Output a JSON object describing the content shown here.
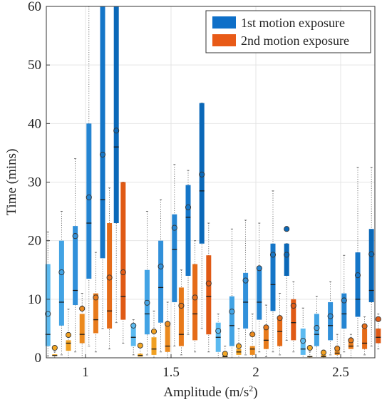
{
  "chart_data": {
    "type": "boxplot",
    "xlabel": "Amplitude (m/s",
    "xlabel_sup": "2",
    "xlabel_suffix": ")",
    "ylabel": "Time (mins)",
    "ylim": [
      0,
      60
    ],
    "yticks": [
      0,
      10,
      20,
      30,
      40,
      50,
      60
    ],
    "grid": true,
    "legend_position": "top-right",
    "categories": [
      "1",
      "1.5",
      "2",
      "2.5"
    ],
    "exposure_colors": [
      "#1565c0",
      "#e65c14"
    ],
    "series": [
      {
        "name": "1st motion exposure",
        "color": "#0e6fc8"
      },
      {
        "name": "2nd motion exposure",
        "color": "#e85a17"
      }
    ],
    "groups": [
      {
        "category": "1",
        "boxes": [
          {
            "exposure": 1,
            "color": "#5bbaf0",
            "min": 0.3,
            "q1": 2,
            "median": 4,
            "q3": 16,
            "max": 21.5,
            "mean": 7.5
          },
          {
            "exposure": 2,
            "color": "#f2a623",
            "min": 0,
            "q1": 0.3,
            "median": 0.4,
            "q3": 0.6,
            "max": 1,
            "mean": 1.7
          },
          {
            "exposure": 1,
            "color": "#42a3e4",
            "min": 0.5,
            "q1": 5.5,
            "median": 9.5,
            "q3": 20,
            "max": 25,
            "mean": 14.6
          },
          {
            "exposure": 2,
            "color": "#f0a021",
            "min": 0,
            "q1": 1.2,
            "median": 2.5,
            "q3": 3,
            "max": 8.3,
            "mean": 3.9
          },
          {
            "exposure": 1,
            "color": "#3190da",
            "min": 1,
            "q1": 9,
            "median": 11.5,
            "q3": 22.5,
            "max": 34,
            "mean": 20.8
          },
          {
            "exposure": 2,
            "color": "#eb8a1e",
            "min": 0,
            "q1": 2.5,
            "median": 4,
            "q3": 7.5,
            "max": 11,
            "mean": 8.4
          },
          {
            "exposure": 1,
            "color": "#2585d2",
            "min": 2,
            "q1": 13.5,
            "median": 23,
            "q3": 40,
            "max": 60,
            "mean": 27.4
          },
          {
            "exposure": 2,
            "color": "#e87a1b",
            "min": 1,
            "q1": 4.2,
            "median": 6.5,
            "q3": 11,
            "max": 18,
            "mean": 10.3
          },
          {
            "exposure": 1,
            "color": "#1576c8",
            "min": 5,
            "q1": 17,
            "median": 27,
            "q3": 60,
            "max": 60,
            "mean": 34.7
          },
          {
            "exposure": 2,
            "color": "#e56b18",
            "min": 1.5,
            "q1": 5,
            "median": 8,
            "q3": 23,
            "max": 29,
            "mean": 13.7
          },
          {
            "exposure": 1,
            "color": "#0a68b8",
            "min": 6,
            "q1": 23,
            "median": 36,
            "q3": 60,
            "max": 60,
            "mean": 38.8
          },
          {
            "exposure": 2,
            "color": "#e05a15",
            "min": 2.5,
            "q1": 6.5,
            "median": 10.5,
            "q3": 30,
            "max": 30,
            "mean": 14.6
          }
        ]
      },
      {
        "category": "1.5",
        "boxes": [
          {
            "exposure": 1,
            "color": "#5bbaf0",
            "min": 0.5,
            "q1": 2,
            "median": 3.5,
            "q3": 5.5,
            "max": 6.5,
            "mean": 5.5
          },
          {
            "exposure": 2,
            "color": "#f2a623",
            "min": 0,
            "q1": 0.2,
            "median": 0.4,
            "q3": 0.7,
            "max": 2,
            "mean": 2.1
          },
          {
            "exposure": 1,
            "color": "#42a3e4",
            "min": 0.5,
            "q1": 4,
            "median": 7.5,
            "q3": 15,
            "max": 25,
            "mean": 9.4
          },
          {
            "exposure": 2,
            "color": "#f0a021",
            "min": 0,
            "q1": 0.5,
            "median": 1.5,
            "q3": 3.5,
            "max": 8,
            "mean": 4.5
          },
          {
            "exposure": 1,
            "color": "#3190da",
            "min": 1,
            "q1": 6,
            "median": 12,
            "q3": 20,
            "max": 27,
            "mean": 15.6
          },
          {
            "exposure": 2,
            "color": "#eb8a1e",
            "min": 0,
            "q1": 1,
            "median": 2,
            "q3": 6,
            "max": 9.5,
            "mean": 5.8
          },
          {
            "exposure": 1,
            "color": "#2585d2",
            "min": 2,
            "q1": 9.5,
            "median": 18.5,
            "q3": 24.5,
            "max": 33,
            "mean": 22.2
          },
          {
            "exposure": 2,
            "color": "#e87a1b",
            "min": 0.5,
            "q1": 2,
            "median": 4,
            "q3": 12,
            "max": 15,
            "mean": 8.9
          },
          {
            "exposure": 1,
            "color": "#1576c8",
            "min": 4,
            "q1": 14,
            "median": 24,
            "q3": 29.5,
            "max": 32,
            "mean": 25.7
          },
          {
            "exposure": 2,
            "color": "#e56b18",
            "min": 1,
            "q1": 3,
            "median": 7.5,
            "q3": 16,
            "max": 20,
            "mean": 10.3
          },
          {
            "exposure": 1,
            "color": "#0a68b8",
            "min": 5,
            "q1": 19.5,
            "median": 28.5,
            "q3": 43.5,
            "max": 43.5,
            "mean": 31.3
          },
          {
            "exposure": 2,
            "color": "#e05a15",
            "min": 1,
            "q1": 4,
            "median": 10.5,
            "q3": 17.5,
            "max": 23,
            "mean": 12.7
          }
        ]
      },
      {
        "category": "2",
        "boxes": [
          {
            "exposure": 1,
            "color": "#5bbaf0",
            "min": 0,
            "q1": 1,
            "median": 3.5,
            "q3": 6,
            "max": 7.5,
            "mean": 4.6
          },
          {
            "exposure": 2,
            "color": "#f2a623",
            "min": 0,
            "q1": 0.1,
            "median": 0.2,
            "q3": 0.4,
            "max": 2,
            "mean": 0.7
          },
          {
            "exposure": 1,
            "color": "#42a3e4",
            "min": 0,
            "q1": 2,
            "median": 5.5,
            "q3": 10.5,
            "max": 22,
            "mean": 7.9
          },
          {
            "exposure": 2,
            "color": "#f0a021",
            "min": 0,
            "q1": 0.5,
            "median": 1,
            "q3": 1.5,
            "max": 5,
            "mean": 2
          },
          {
            "exposure": 1,
            "color": "#3190da",
            "min": 0.5,
            "q1": 5,
            "median": 9.5,
            "q3": 14.5,
            "max": 23.5,
            "mean": 13.2
          },
          {
            "exposure": 2,
            "color": "#eb8a1e",
            "min": 0,
            "q1": 0.5,
            "median": 1.5,
            "q3": 2,
            "max": 7.5,
            "mean": 4
          },
          {
            "exposure": 1,
            "color": "#2585d2",
            "min": 1,
            "q1": 6.5,
            "median": 9.5,
            "q3": 15,
            "max": 23,
            "mean": 15.3
          },
          {
            "exposure": 2,
            "color": "#e87a1b",
            "min": 0.2,
            "q1": 1.5,
            "median": 3,
            "q3": 5,
            "max": 9,
            "mean": 5.2
          },
          {
            "exposure": 1,
            "color": "#1576c8",
            "min": 1,
            "q1": 8,
            "median": 12.5,
            "q3": 19.5,
            "max": 28.5,
            "mean": 17.6
          },
          {
            "exposure": 2,
            "color": "#e56b18",
            "min": 0.5,
            "q1": 2,
            "median": 4.5,
            "q3": 7,
            "max": 11,
            "mean": 6.8
          },
          {
            "exposure": 1,
            "color": "#0a68b8",
            "min": 3,
            "q1": 14,
            "median": 17.5,
            "q3": 19.5,
            "max": 19.5,
            "mean": 17.6,
            "outliers": [
              22
            ]
          },
          {
            "exposure": 2,
            "color": "#e05a15",
            "min": 1,
            "q1": 3,
            "median": 6,
            "q3": 10,
            "max": 13,
            "mean": 8.9
          }
        ]
      },
      {
        "category": "2.5",
        "boxes": [
          {
            "exposure": 1,
            "color": "#5bbaf0",
            "min": 0,
            "q1": 0.5,
            "median": 1.5,
            "q3": 5,
            "max": 8.5,
            "mean": 2.9
          },
          {
            "exposure": 2,
            "color": "#f2a623",
            "min": 0,
            "q1": 0.1,
            "median": 0.2,
            "q3": 0.3,
            "max": 1,
            "mean": 1.7
          },
          {
            "exposure": 1,
            "color": "#42a3e4",
            "min": 0,
            "q1": 2,
            "median": 4,
            "q3": 7.5,
            "max": 10.5,
            "mean": 5.1
          },
          {
            "exposure": 2,
            "color": "#f0a021",
            "min": 0,
            "q1": 0.1,
            "median": 0.2,
            "q3": 0.5,
            "max": 1,
            "mean": 0.9
          },
          {
            "exposure": 1,
            "color": "#3190da",
            "min": 0.5,
            "q1": 3,
            "median": 5.5,
            "q3": 9.5,
            "max": 13,
            "mean": 7.1
          },
          {
            "exposure": 2,
            "color": "#eb8a1e",
            "min": 0,
            "q1": 0.5,
            "median": 0.8,
            "q3": 1.8,
            "max": 4,
            "mean": 1.6
          },
          {
            "exposure": 1,
            "color": "#2585d2",
            "min": 1,
            "q1": 5,
            "median": 7.5,
            "q3": 11,
            "max": 17.5,
            "mean": 9.8
          },
          {
            "exposure": 2,
            "color": "#e87a1b",
            "min": 0,
            "q1": 1.5,
            "median": 2,
            "q3": 3,
            "max": 4,
            "mean": 3
          },
          {
            "exposure": 1,
            "color": "#1576c8",
            "min": 2,
            "q1": 7,
            "median": 10,
            "q3": 18,
            "max": 32.5,
            "mean": 14.1
          },
          {
            "exposure": 2,
            "color": "#e56b18",
            "min": 0.5,
            "q1": 1.5,
            "median": 2.5,
            "q3": 5,
            "max": 7,
            "mean": 5.4
          },
          {
            "exposure": 1,
            "color": "#0a68b8",
            "min": 2,
            "q1": 9.5,
            "median": 11.5,
            "q3": 22,
            "max": 32.5,
            "mean": 17.7
          },
          {
            "exposure": 2,
            "color": "#e05a15",
            "min": 1.5,
            "q1": 2.5,
            "median": 3.5,
            "q3": 5,
            "max": 7.5,
            "mean": 6.6
          }
        ]
      }
    ]
  }
}
